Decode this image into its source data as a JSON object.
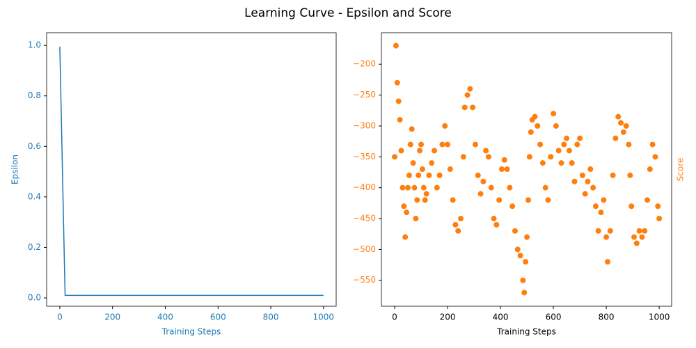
{
  "title": "Learning Curve - Epsilon and Score",
  "chart_data": [
    {
      "type": "line",
      "xlabel": "Training Steps",
      "ylabel": "Epsilon",
      "color": "#1f77b4",
      "x": [
        0,
        20,
        1000
      ],
      "values": [
        0.995,
        0.01,
        0.01
      ],
      "xlim": [
        -50,
        1048
      ],
      "ylim": [
        -0.033,
        1.05
      ],
      "xticks": [
        0,
        200,
        400,
        600,
        800,
        1000
      ],
      "yticks": [
        {
          "value": 0,
          "label": "0.0"
        },
        0.2,
        0.4,
        0.6,
        0.8,
        {
          "value": 1,
          "label": "1.0"
        }
      ]
    },
    {
      "type": "scatter",
      "xlabel": "Training Steps",
      "ylabel": "Score",
      "color": "#ff7f0e",
      "x": [
        0,
        5,
        10,
        15,
        20,
        25,
        30,
        35,
        40,
        45,
        50,
        55,
        60,
        65,
        70,
        75,
        80,
        85,
        90,
        95,
        100,
        105,
        110,
        115,
        120,
        130,
        140,
        150,
        160,
        170,
        180,
        190,
        200,
        210,
        220,
        230,
        240,
        250,
        260,
        265,
        275,
        285,
        295,
        305,
        315,
        325,
        335,
        345,
        355,
        365,
        375,
        385,
        395,
        405,
        415,
        425,
        435,
        445,
        455,
        465,
        475,
        485,
        490,
        495,
        500,
        505,
        510,
        515,
        520,
        530,
        540,
        550,
        560,
        570,
        580,
        590,
        600,
        610,
        620,
        630,
        640,
        650,
        660,
        670,
        680,
        690,
        700,
        710,
        720,
        730,
        740,
        750,
        760,
        770,
        780,
        790,
        800,
        805,
        815,
        825,
        835,
        845,
        855,
        865,
        875,
        885,
        890,
        895,
        905,
        915,
        925,
        935,
        945,
        955,
        965,
        975,
        985,
        995,
        1000
      ],
      "values": [
        -350,
        -170,
        -230,
        -260,
        -290,
        -340,
        -400,
        -430,
        -480,
        -440,
        -400,
        -380,
        -330,
        -305,
        -360,
        -400,
        -450,
        -420,
        -380,
        -340,
        -330,
        -370,
        -400,
        -420,
        -410,
        -380,
        -360,
        -340,
        -400,
        -380,
        -330,
        -300,
        -330,
        -370,
        -420,
        -460,
        -470,
        -450,
        -350,
        -270,
        -250,
        -240,
        -270,
        -330,
        -380,
        -410,
        -390,
        -340,
        -350,
        -400,
        -450,
        -460,
        -420,
        -370,
        -355,
        -370,
        -400,
        -430,
        -470,
        -500,
        -510,
        -550,
        -570,
        -520,
        -480,
        -420,
        -350,
        -310,
        -290,
        -285,
        -300,
        -330,
        -360,
        -400,
        -420,
        -350,
        -280,
        -300,
        -340,
        -360,
        -330,
        -320,
        -340,
        -360,
        -390,
        -330,
        -320,
        -380,
        -410,
        -390,
        -370,
        -400,
        -430,
        -470,
        -440,
        -420,
        -480,
        -520,
        -470,
        -380,
        -320,
        -285,
        -295,
        -310,
        -300,
        -330,
        -380,
        -430,
        -480,
        -490,
        -470,
        -480,
        -470,
        -420,
        -370,
        -330,
        -350,
        -430,
        -450
      ],
      "xlim": [
        -50,
        1047
      ],
      "ylim": [
        -592,
        -149
      ],
      "xticks": [
        0,
        200,
        400,
        600,
        800,
        1000
      ],
      "yticks": [
        {
          "value": -550,
          "label": "−550"
        },
        {
          "value": -500,
          "label": "−500"
        },
        {
          "value": -450,
          "label": "−450"
        },
        {
          "value": -400,
          "label": "−400"
        },
        {
          "value": -350,
          "label": "−350"
        },
        {
          "value": -300,
          "label": "−300"
        },
        {
          "value": -250,
          "label": "−250"
        },
        {
          "value": -200,
          "label": "−200"
        }
      ]
    }
  ]
}
